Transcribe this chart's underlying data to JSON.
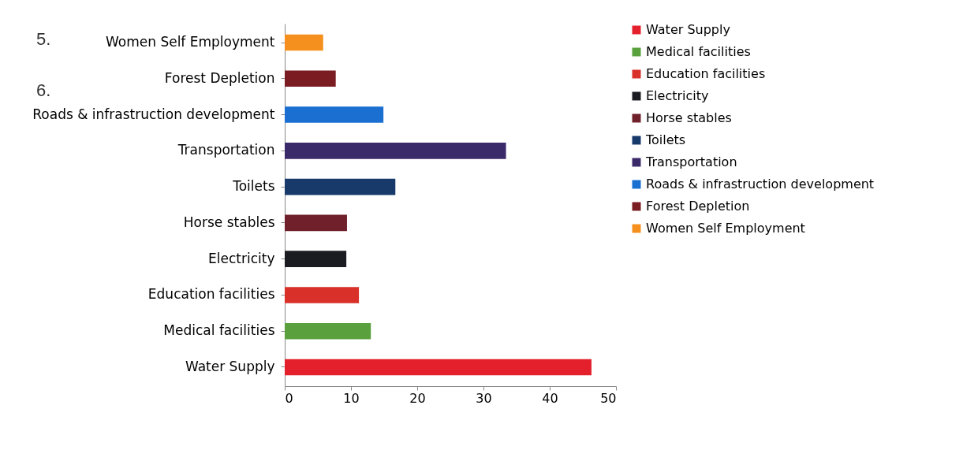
{
  "chart_data": {
    "type": "bar",
    "orientation": "horizontal",
    "categories": [
      "Women Self Employment",
      "Forest Depletion",
      "Roads & infrastruction development",
      "Transportation",
      "Toilets",
      "Horse stables",
      "Electricity",
      "Education facilities",
      "Medical facilities",
      "Water Supply"
    ],
    "series": [
      {
        "name": "Water Supply",
        "color": "#e3202b",
        "values": [
          null,
          null,
          null,
          null,
          null,
          null,
          null,
          null,
          null,
          46.3
        ]
      },
      {
        "name": "Medical facilities",
        "color": "#5aa03c",
        "values": [
          null,
          null,
          null,
          null,
          null,
          null,
          null,
          null,
          13.0,
          null
        ]
      },
      {
        "name": "Education facilities",
        "color": "#d9302a",
        "values": [
          null,
          null,
          null,
          null,
          null,
          null,
          null,
          11.2,
          null,
          null
        ]
      },
      {
        "name": "Electricity",
        "color": "#1b1b22",
        "values": [
          null,
          null,
          null,
          null,
          null,
          null,
          9.3,
          null,
          null,
          null
        ]
      },
      {
        "name": "Horse stables",
        "color": "#70202a",
        "values": [
          null,
          null,
          null,
          null,
          null,
          9.4,
          null,
          null,
          null,
          null
        ]
      },
      {
        "name": "Toilets",
        "color": "#173a6a",
        "values": [
          null,
          null,
          null,
          null,
          16.7,
          null,
          null,
          null,
          null,
          null
        ]
      },
      {
        "name": "Transportation",
        "color": "#3b2a6a",
        "values": [
          null,
          null,
          null,
          33.4,
          null,
          null,
          null,
          null,
          null,
          null
        ]
      },
      {
        "name": "Roads & infrastruction development",
        "color": "#1a6fd0",
        "values": [
          null,
          null,
          14.9,
          null,
          null,
          null,
          null,
          null,
          null,
          null
        ]
      },
      {
        "name": "Forest Depletion",
        "color": "#7a1c22",
        "values": [
          null,
          7.7,
          null,
          null,
          null,
          null,
          null,
          null,
          null,
          null
        ]
      },
      {
        "name": "Women Self Employment",
        "color": "#f5901e",
        "values": [
          5.8,
          null,
          null,
          null,
          null,
          null,
          null,
          null,
          null,
          null
        ]
      }
    ],
    "xlim": [
      0,
      50
    ],
    "xticks": [
      0,
      10,
      20,
      30,
      40,
      50
    ],
    "grid": false,
    "legend": "right",
    "annotations": [
      "5.",
      "6."
    ]
  }
}
